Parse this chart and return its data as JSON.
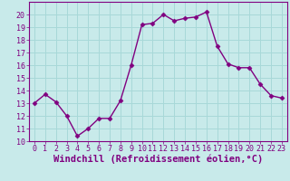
{
  "x": [
    0,
    1,
    2,
    3,
    4,
    5,
    6,
    7,
    8,
    9,
    10,
    11,
    12,
    13,
    14,
    15,
    16,
    17,
    18,
    19,
    20,
    21,
    22,
    23
  ],
  "y": [
    13.0,
    13.7,
    13.1,
    12.0,
    10.4,
    11.0,
    11.8,
    11.8,
    13.2,
    16.0,
    19.2,
    19.3,
    20.0,
    19.5,
    19.7,
    19.8,
    20.2,
    17.5,
    16.1,
    15.8,
    15.8,
    14.5,
    13.6,
    13.4
  ],
  "line_color": "#800080",
  "marker": "D",
  "marker_size": 2.5,
  "background_color": "#c8eaea",
  "grid_color": "#a8d8d8",
  "xlabel": "Windchill (Refroidissement éolien,°C)",
  "ylim": [
    10,
    21
  ],
  "xlim": [
    -0.5,
    23.5
  ],
  "yticks": [
    10,
    11,
    12,
    13,
    14,
    15,
    16,
    17,
    18,
    19,
    20
  ],
  "xticks": [
    0,
    1,
    2,
    3,
    4,
    5,
    6,
    7,
    8,
    9,
    10,
    11,
    12,
    13,
    14,
    15,
    16,
    17,
    18,
    19,
    20,
    21,
    22,
    23
  ],
  "tick_fontsize": 6.0,
  "xlabel_fontsize": 7.5,
  "linewidth": 1.0
}
